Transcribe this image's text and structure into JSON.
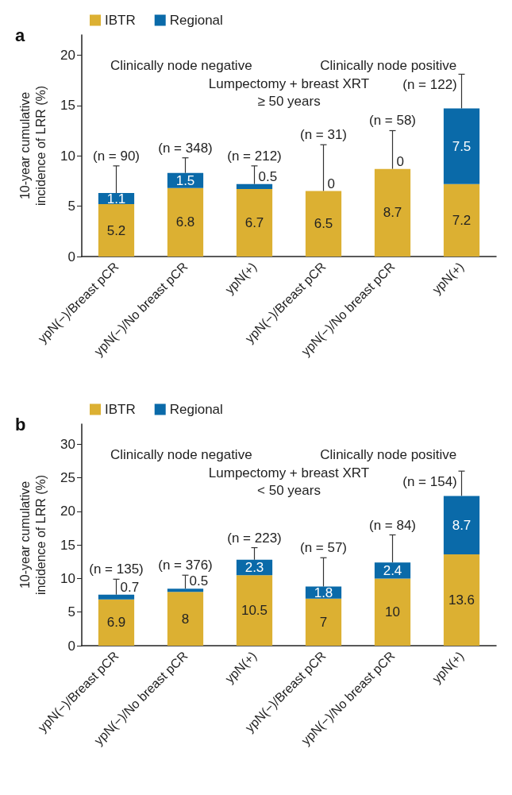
{
  "chart_data": [
    {
      "type": "bar",
      "title": "a",
      "ylabel": "10-year cumulative\nincidence of LRR (%)",
      "categories": [
        "ypN(−)/Breast pCR",
        "ypN(−)/No breast pCR",
        "ypN(+)",
        "ypN(−)/Breast pCR",
        "ypN(−)/No breast pCR",
        "ypN(+)"
      ],
      "series": [
        {
          "name": "IBTR",
          "color": "#dcb032",
          "values": [
            5.2,
            6.8,
            6.7,
            6.5,
            8.7,
            7.2
          ]
        },
        {
          "name": "Regional",
          "color": "#0a6aa9",
          "values": [
            1.1,
            1.5,
            0.5,
            0,
            0,
            7.5
          ],
          "errors": [
            [
              6.3,
              9.0
            ],
            [
              8.3,
              9.8
            ],
            [
              7.2,
              9.0
            ],
            [
              6.5,
              11.1
            ],
            [
              8.7,
              12.5
            ],
            [
              14.7,
              18.1
            ]
          ]
        }
      ],
      "stacked": true,
      "data_labels": true,
      "ylim": [
        0,
        22
      ],
      "yticks": [
        0,
        5,
        10,
        15,
        20
      ],
      "grid": false,
      "legend": "top left",
      "annotations": [
        "Clinically node negative",
        "Clinically node positive",
        "Lumpectomy + breast XRT\n≥ 50 years",
        "(n = 90)",
        "(n = 348)",
        "(n = 212)",
        "(n = 31)",
        "(n = 58)",
        "(n = 122)"
      ]
    },
    {
      "type": "bar",
      "title": "b",
      "ylabel": "10-year cumulative\nincidence of LRR (%)",
      "categories": [
        "ypN(−)/Breast pCR",
        "ypN(−)/No breast pCR",
        "ypN(+)",
        "ypN(−)/Breast pCR",
        "ypN(−)/No breast pCR",
        "ypN(+)"
      ],
      "series": [
        {
          "name": "IBTR",
          "color": "#dcb032",
          "values": [
            6.9,
            8,
            10.5,
            7,
            10,
            13.6
          ]
        },
        {
          "name": "Regional",
          "color": "#0a6aa9",
          "values": [
            0.7,
            0.5,
            2.3,
            1.8,
            2.4,
            8.7
          ],
          "errors": [
            [
              7.6,
              9.9
            ],
            [
              8.5,
              10.5
            ],
            [
              12.8,
              14.6
            ],
            [
              8.8,
              13.1
            ],
            [
              12.4,
              16.5
            ],
            [
              22.3,
              26.0
            ]
          ]
        }
      ],
      "stacked": true,
      "data_labels": true,
      "ylim": [
        0,
        33
      ],
      "yticks": [
        0,
        5,
        10,
        15,
        20,
        25,
        30
      ],
      "grid": false,
      "legend": "top left",
      "annotations": [
        "Clinically node negative",
        "Clinically node positive",
        "Lumpectomy + breast XRT\n< 50 years",
        "(n = 135)",
        "(n = 376)",
        "(n = 223)",
        "(n = 57)",
        "(n = 84)",
        "(n = 154)"
      ]
    }
  ]
}
